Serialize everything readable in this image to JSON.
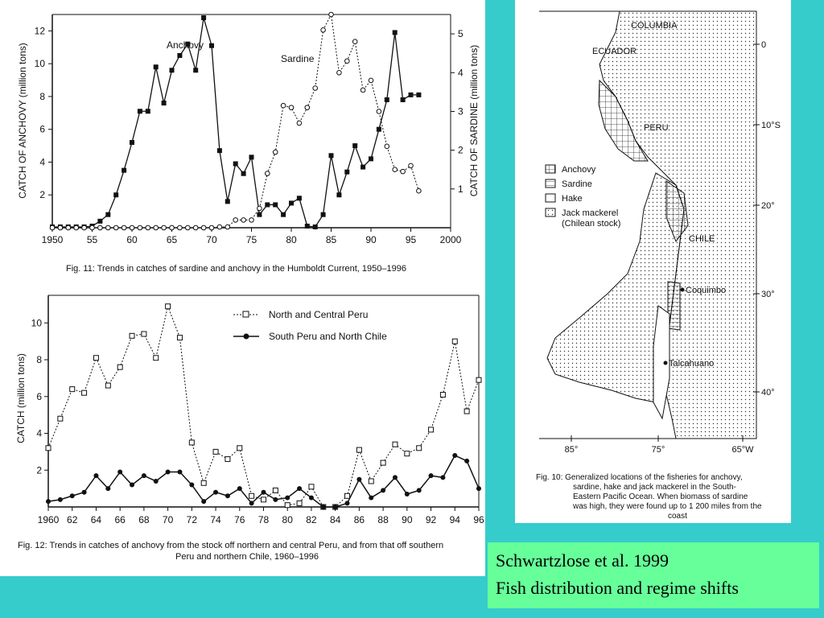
{
  "slide": {
    "caption_line1": "Schwartzlose et al. 1999",
    "caption_line2": "Fish distribution and regime shifts",
    "colors": {
      "background": "#36cccc",
      "caption_box": "#66ff99",
      "panel": "#ffffff"
    }
  },
  "fig11": {
    "caption": "Fig. 11:  Trends in catches of sardine and anchovy in the Humboldt Current, 1950–1996",
    "ylabel_left": "CATCH OF ANCHOVY (million tons)",
    "ylabel_right": "CATCH OF SARDINE (million tons)",
    "label_anchovy": "Anchovy",
    "label_sardine": "Sardine"
  },
  "fig12": {
    "caption_line1": "Fig. 12:  Trends in catches of anchovy from the stock off northern and central Peru, and from that off southern",
    "caption_line2": "Peru and northern Chile, 1960–1996",
    "ylabel": "CATCH (million tons)",
    "legend_north": "North and Central Peru",
    "legend_south": "South Peru and North Chile"
  },
  "fig10": {
    "caption_line1": "Fig. 10:  Generalized locations of the fisheries for anchovy,",
    "caption_line2": "sardine, hake and jack mackerel in the South-",
    "caption_line3": "Eastern Pacific Ocean. When biomass of sardine",
    "caption_line4": "was high, they were found up to 1 200 miles from the",
    "caption_line5": "coast",
    "country_colombia": "COLUMBIA",
    "country_ecuador": "ECUADOR",
    "country_peru": "PERU",
    "country_chile": "CHILE",
    "city_coquimbo": "Coquimbo",
    "city_talcahuano": "Talcahuano",
    "legend_anchovy": "Anchovy",
    "legend_sardine": "Sardine",
    "legend_hake": "Hake",
    "legend_jack1": "Jack mackerel",
    "legend_jack2": "(Chilean stock)",
    "lat_ticks": [
      "0",
      "10°S",
      "20°",
      "30°",
      "40°"
    ],
    "lon_ticks": [
      "85°",
      "75°",
      "65°W"
    ]
  },
  "chart_data": [
    {
      "type": "line",
      "x_ticks": [
        "1950",
        "55",
        "60",
        "65",
        "70",
        "75",
        "80",
        "85",
        "90",
        "95",
        "2000"
      ],
      "y_left_ticks": [
        "2",
        "4",
        "6",
        "8",
        "10",
        "12"
      ],
      "y_right_ticks": [
        "1",
        "2",
        "3",
        "4",
        "5"
      ],
      "xlim": [
        1950,
        2000
      ],
      "ylim_left": [
        0,
        13
      ],
      "ylim_right": [
        0,
        5.5
      ],
      "series": [
        {
          "name": "Anchovy",
          "axis": "left",
          "x": [
            1950,
            1951,
            1952,
            1953,
            1954,
            1955,
            1956,
            1957,
            1958,
            1959,
            1960,
            1961,
            1962,
            1963,
            1964,
            1965,
            1966,
            1967,
            1968,
            1969,
            1970,
            1971,
            1972,
            1973,
            1974,
            1975,
            1976,
            1977,
            1978,
            1979,
            1980,
            1981,
            1982,
            1983,
            1984,
            1985,
            1986,
            1987,
            1988,
            1989,
            1990,
            1991,
            1992,
            1993,
            1994,
            1995,
            1996
          ],
          "values": [
            0.05,
            0.05,
            0.05,
            0.05,
            0.05,
            0.1,
            0.4,
            0.8,
            2.0,
            3.5,
            5.2,
            7.1,
            7.1,
            9.8,
            7.6,
            9.6,
            10.5,
            11.2,
            9.6,
            12.8,
            11.1,
            4.7,
            1.6,
            3.9,
            3.3,
            4.3,
            0.8,
            1.4,
            1.4,
            0.8,
            1.5,
            1.8,
            0.1,
            0.05,
            0.8,
            4.4,
            2.0,
            3.4,
            5.0,
            3.7,
            4.2,
            6.0,
            7.8,
            11.9,
            7.8,
            8.1,
            8.1
          ]
        },
        {
          "name": "Sardine",
          "axis": "right",
          "x": [
            1950,
            1951,
            1952,
            1953,
            1954,
            1955,
            1956,
            1957,
            1958,
            1959,
            1960,
            1961,
            1962,
            1963,
            1964,
            1965,
            1966,
            1967,
            1968,
            1969,
            1970,
            1971,
            1972,
            1973,
            1974,
            1975,
            1976,
            1977,
            1978,
            1979,
            1980,
            1981,
            1982,
            1983,
            1984,
            1985,
            1986,
            1987,
            1988,
            1989,
            1990,
            1991,
            1992,
            1993,
            1994,
            1995,
            1996
          ],
          "values": [
            0,
            0,
            0,
            0,
            0,
            0,
            0,
            0,
            0,
            0,
            0,
            0,
            0,
            0,
            0,
            0,
            0,
            0,
            0,
            0,
            0,
            0.02,
            0.02,
            0.2,
            0.2,
            0.2,
            0.5,
            1.4,
            1.95,
            3.15,
            3.1,
            2.7,
            3.1,
            3.6,
            5.1,
            5.5,
            4.0,
            4.3,
            4.8,
            3.55,
            3.8,
            3.0,
            2.1,
            1.5,
            1.45,
            1.6,
            0.95
          ]
        }
      ]
    },
    {
      "type": "line",
      "x_ticks": [
        "1960",
        "62",
        "64",
        "66",
        "68",
        "70",
        "72",
        "74",
        "76",
        "78",
        "80",
        "82",
        "84",
        "86",
        "88",
        "90",
        "92",
        "94",
        "96"
      ],
      "y_ticks": [
        "2",
        "4",
        "6",
        "8",
        "10"
      ],
      "xlim": [
        1960,
        1996
      ],
      "ylim": [
        0,
        11.5
      ],
      "series": [
        {
          "name": "North and Central Peru",
          "x": [
            1960,
            1961,
            1962,
            1963,
            1964,
            1965,
            1966,
            1967,
            1968,
            1969,
            1970,
            1971,
            1972,
            1973,
            1974,
            1975,
            1976,
            1977,
            1978,
            1979,
            1980,
            1981,
            1982,
            1983,
            1984,
            1985,
            1986,
            1987,
            1988,
            1989,
            1990,
            1991,
            1992,
            1993,
            1994,
            1995,
            1996
          ],
          "values": [
            3.2,
            4.8,
            6.4,
            6.2,
            8.1,
            6.6,
            7.6,
            9.3,
            9.4,
            8.1,
            10.9,
            9.2,
            3.5,
            1.3,
            3.0,
            2.6,
            3.2,
            0.6,
            0.4,
            0.9,
            0.1,
            0.2,
            1.1,
            0.0,
            0.0,
            0.6,
            3.1,
            1.4,
            2.4,
            3.4,
            2.9,
            3.2,
            4.2,
            6.1,
            9.0,
            5.2,
            6.9
          ]
        },
        {
          "name": "South Peru and North Chile",
          "x": [
            1960,
            1961,
            1962,
            1963,
            1964,
            1965,
            1966,
            1967,
            1968,
            1969,
            1970,
            1971,
            1972,
            1973,
            1974,
            1975,
            1976,
            1977,
            1978,
            1979,
            1980,
            1981,
            1982,
            1983,
            1984,
            1985,
            1986,
            1987,
            1988,
            1989,
            1990,
            1991,
            1992,
            1993,
            1994,
            1995,
            1996
          ],
          "values": [
            0.3,
            0.4,
            0.6,
            0.8,
            1.7,
            1.0,
            1.9,
            1.2,
            1.7,
            1.4,
            1.9,
            1.9,
            1.2,
            0.3,
            0.8,
            0.6,
            1.0,
            0.2,
            0.8,
            0.4,
            0.5,
            1.0,
            0.5,
            0.0,
            0.0,
            0.2,
            1.5,
            0.5,
            0.9,
            1.6,
            0.7,
            0.9,
            1.7,
            1.6,
            2.8,
            2.5,
            1.0
          ]
        }
      ]
    }
  ]
}
